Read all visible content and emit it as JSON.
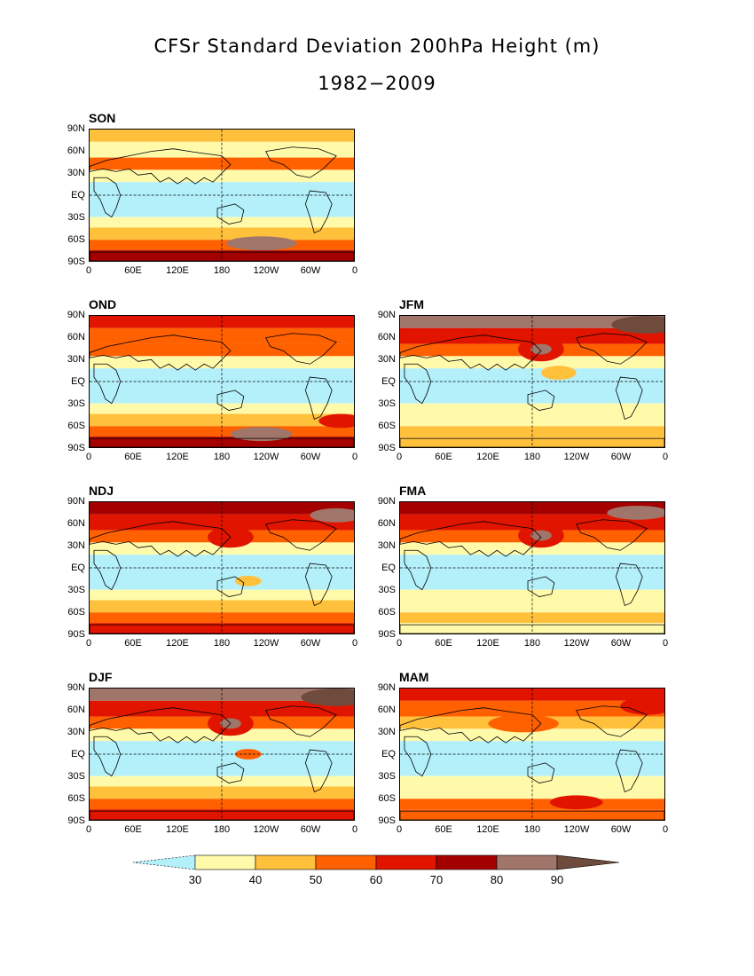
{
  "title": "CFSr Standard Deviation 200hPa Height (m)",
  "subtitle": "1982−2009",
  "lat_labels": [
    "90N",
    "60N",
    "30N",
    "EQ",
    "30S",
    "60S",
    "90S"
  ],
  "lon_labels": [
    "0",
    "60E",
    "120E",
    "180",
    "120W",
    "60W",
    "0"
  ],
  "panels": [
    {
      "season": "SON",
      "row": 0,
      "col": 0
    },
    {
      "season": "OND",
      "row": 1,
      "col": 0
    },
    {
      "season": "JFM",
      "row": 1,
      "col": 1
    },
    {
      "season": "NDJ",
      "row": 2,
      "col": 0
    },
    {
      "season": "FMA",
      "row": 2,
      "col": 1
    },
    {
      "season": "DJF",
      "row": 3,
      "col": 0
    },
    {
      "season": "MAM",
      "row": 3,
      "col": 1
    }
  ],
  "colorbar": {
    "levels": [
      "30",
      "40",
      "50",
      "60",
      "70",
      "80",
      "90"
    ],
    "colors": [
      "#b4f0fa",
      "#fffaaa",
      "#ffc03c",
      "#ff6000",
      "#e11400",
      "#a50000",
      "#a0756a",
      "#6e4b3c"
    ]
  }
}
